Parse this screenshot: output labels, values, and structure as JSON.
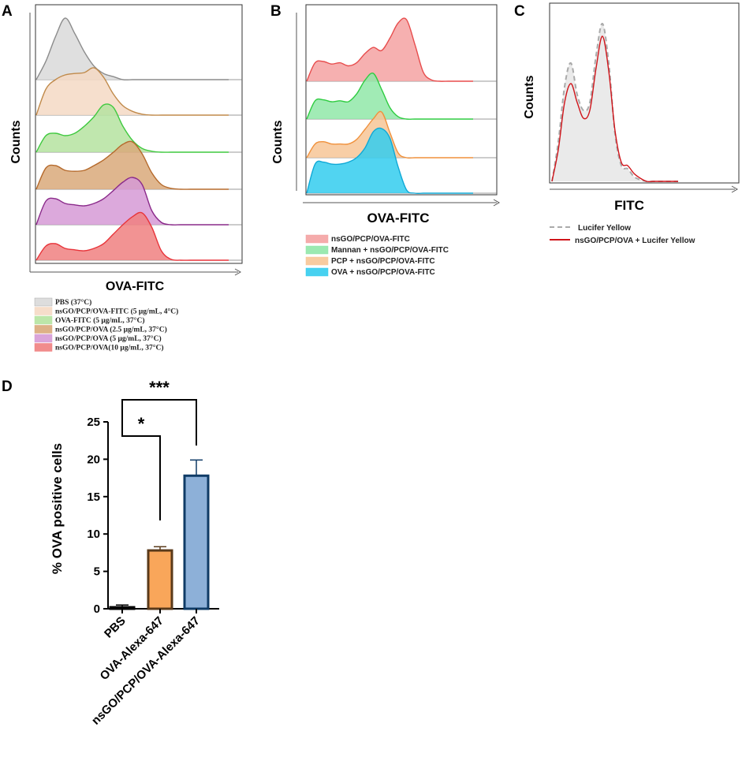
{
  "figure": {
    "panel_labels": [
      "A",
      "B",
      "C",
      "D"
    ]
  },
  "chart_data": [
    {
      "panel": "A",
      "type": "area",
      "subtype": "offset-histogram",
      "xlabel": "OVA-FITC",
      "ylabel": "Counts",
      "series": [
        {
          "name": "PBS (37°C)",
          "fill": "#d9d9d9",
          "stroke": "#8c8c8c",
          "peak_x": 0.12,
          "values": [
            0.05,
            0.3,
            0.7,
            1.0,
            0.75,
            0.45,
            0.22,
            0.1,
            0.05,
            0,
            0,
            0,
            0,
            0,
            0,
            0,
            0,
            0,
            0,
            0,
            0
          ]
        },
        {
          "name": "nsGO/PCP/OVA-FITC (5 μg/mL, 4°C)",
          "fill": "#f5d9c4",
          "stroke": "#c08a4a",
          "peak_x": 0.3,
          "values": [
            0.1,
            0.55,
            0.75,
            0.85,
            0.88,
            0.9,
            1.0,
            0.8,
            0.45,
            0.2,
            0.08,
            0.02,
            0,
            0,
            0,
            0,
            0,
            0,
            0,
            0,
            0
          ]
        },
        {
          "name": "OVA-FITC (5 μg/mL, 37°C)",
          "fill": "#b5e3a0",
          "stroke": "#3fc93f",
          "peak_x": 0.39,
          "values": [
            0.05,
            0.35,
            0.4,
            0.35,
            0.4,
            0.55,
            0.75,
            1.0,
            0.95,
            0.55,
            0.25,
            0.08,
            0.02,
            0,
            0,
            0,
            0,
            0,
            0,
            0,
            0
          ]
        },
        {
          "name": "nsGO/PCP/OVA (2.5 μg/mL, 37°C)",
          "fill": "#d9a97a",
          "stroke": "#b56a2c",
          "peak_x": 0.5,
          "values": [
            0.1,
            0.45,
            0.5,
            0.4,
            0.38,
            0.4,
            0.5,
            0.62,
            0.78,
            0.95,
            1.0,
            0.75,
            0.35,
            0.1,
            0.02,
            0,
            0,
            0,
            0,
            0,
            0
          ]
        },
        {
          "name": "nsGO/PCP/OVA (5 μg/mL, 37°C)",
          "fill": "#d69ad6",
          "stroke": "#8a2a8a",
          "peak_x": 0.52,
          "values": [
            0.1,
            0.5,
            0.55,
            0.45,
            0.42,
            0.4,
            0.45,
            0.55,
            0.72,
            0.9,
            1.0,
            0.85,
            0.3,
            0.05,
            0,
            0,
            0,
            0,
            0,
            0,
            0
          ]
        },
        {
          "name": "nsGO/PCP/OVA(10 μg/mL, 37°C)",
          "fill": "#f08080",
          "stroke": "#e8343a",
          "peak_x": 0.55,
          "values": [
            0.05,
            0.3,
            0.35,
            0.25,
            0.22,
            0.2,
            0.25,
            0.35,
            0.55,
            0.75,
            0.92,
            1.0,
            0.7,
            0.2,
            0.02,
            0,
            0,
            0,
            0,
            0,
            0
          ]
        }
      ]
    },
    {
      "panel": "B",
      "type": "area",
      "subtype": "offset-histogram",
      "xlabel": "OVA-FITC",
      "ylabel": "Counts",
      "series": [
        {
          "name": "nsGO/PCP/OVA-FITC",
          "fill": "#f4a2a2",
          "stroke": "#e74c4c",
          "values": [
            0.05,
            0.3,
            0.32,
            0.28,
            0.3,
            0.25,
            0.3,
            0.45,
            0.55,
            0.5,
            0.7,
            0.95,
            1.0,
            0.6,
            0.15,
            0.02,
            0,
            0,
            0,
            0,
            0
          ]
        },
        {
          "name": "Mannan + nsGO/PCP/OVA-FITC",
          "fill": "#90e7a8",
          "stroke": "#2ecc40",
          "values": [
            0.1,
            0.4,
            0.42,
            0.38,
            0.4,
            0.38,
            0.55,
            0.85,
            1.0,
            0.65,
            0.25,
            0.05,
            0,
            0,
            0,
            0,
            0,
            0,
            0,
            0,
            0
          ]
        },
        {
          "name": "PCP + nsGO/PCP/OVA-FITC",
          "fill": "#f7c596",
          "stroke": "#f0913c",
          "values": [
            0.08,
            0.3,
            0.35,
            0.3,
            0.3,
            0.3,
            0.4,
            0.62,
            0.85,
            1.0,
            0.55,
            0.1,
            0,
            0,
            0,
            0,
            0,
            0,
            0,
            0,
            0
          ]
        },
        {
          "name": "OVA + nsGO/PCP/OVA-FITC",
          "fill": "#33ccee",
          "stroke": "#0fa8d6",
          "values": [
            0.1,
            0.45,
            0.48,
            0.45,
            0.45,
            0.48,
            0.55,
            0.7,
            0.95,
            1.0,
            0.85,
            0.4,
            0.05,
            0,
            0,
            0,
            0,
            0,
            0,
            0,
            0
          ]
        }
      ]
    },
    {
      "panel": "C",
      "type": "area",
      "subtype": "overlay-histogram",
      "xlabel": "FITC",
      "ylabel": "Counts",
      "series": [
        {
          "name": "Lucifer Yellow",
          "style": "dashed",
          "fill": "#e6e6e6",
          "stroke": "#aaaaaa",
          "values": [
            0.05,
            0.25,
            0.6,
            0.75,
            0.55,
            0.45,
            0.5,
            0.8,
            1.0,
            0.75,
            0.3,
            0.1,
            0.08,
            0.03,
            0.01,
            0,
            0,
            0,
            0,
            0,
            0
          ]
        },
        {
          "name": "nsGO/PCP/OVA + Lucifer Yellow",
          "style": "solid",
          "fill": "none",
          "stroke": "#d0141a",
          "values": [
            0.03,
            0.2,
            0.5,
            0.62,
            0.5,
            0.4,
            0.45,
            0.72,
            0.92,
            0.7,
            0.32,
            0.12,
            0.1,
            0.05,
            0.02,
            0,
            0,
            0,
            0,
            0,
            0
          ]
        }
      ]
    },
    {
      "panel": "D",
      "type": "bar",
      "ylabel": "% OVA positive cells",
      "ylim": [
        0,
        25
      ],
      "yticks": [
        "0",
        "5",
        "10",
        "15",
        "20",
        "25"
      ],
      "categories": [
        "PBS",
        "OVA-Alexa-647",
        "nsGO/PCP/OVA-Alexa-647"
      ],
      "values": [
        0.2,
        7.8,
        17.8
      ],
      "errors": [
        0.3,
        0.5,
        2.1
      ],
      "colors": [
        "#ffffff",
        "#f9a65a",
        "#8db0d8"
      ],
      "edge_colors": [
        "#000000",
        "#5a3a1a",
        "#0f3b66"
      ],
      "significance": [
        {
          "from": 0,
          "to": 1,
          "label": "*"
        },
        {
          "from": 0,
          "to": 2,
          "label": "***"
        }
      ]
    }
  ]
}
